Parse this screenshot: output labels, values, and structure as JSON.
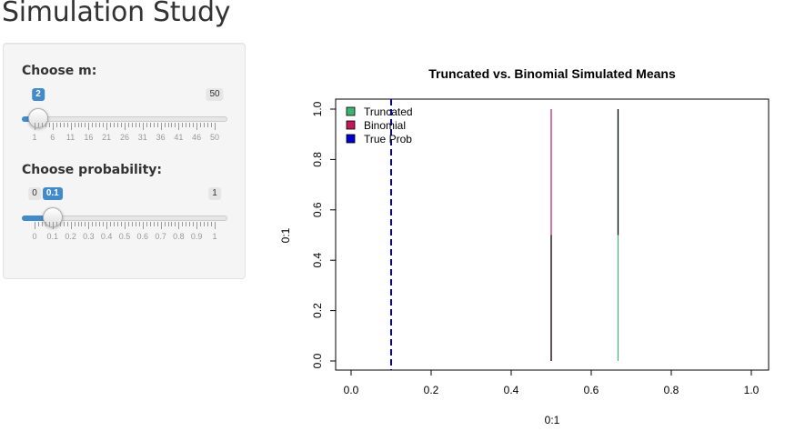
{
  "page": {
    "title": "Simulation Study"
  },
  "controls": {
    "m": {
      "label": "Choose m:",
      "min": 1,
      "max": 50,
      "value": 2,
      "min_label": "",
      "max_label": "50",
      "value_label": "2",
      "ticks": [
        "1",
        "6",
        "11",
        "16",
        "21",
        "26",
        "31",
        "36",
        "41",
        "46",
        "50"
      ]
    },
    "probability": {
      "label": "Choose probability:",
      "min": 0,
      "max": 1,
      "value": 0.1,
      "min_label": "0",
      "max_label": "1",
      "value_label": "0.1",
      "ticks": [
        "0",
        "0.1",
        "0.2",
        "0.3",
        "0.4",
        "0.5",
        "0.6",
        "0.7",
        "0.8",
        "0.9",
        "1"
      ]
    },
    "accent_color": "#428bca"
  },
  "chart_data": {
    "type": "histogram",
    "title": "Truncated vs. Binomial Simulated Means",
    "xlabel": "0:1",
    "ylabel": "0:1",
    "xlim": [
      0,
      1
    ],
    "ylim": [
      0,
      1
    ],
    "xticks": [
      "0.0",
      "0.2",
      "0.4",
      "0.6",
      "0.8",
      "1.0"
    ],
    "yticks": [
      "0.0",
      "0.2",
      "0.4",
      "0.6",
      "0.8",
      "1.0"
    ],
    "legend_position": "top-left",
    "series": [
      {
        "name": "Truncated",
        "color": "#3cb371",
        "x": 0.667,
        "ymin": 0,
        "ymax": 1
      },
      {
        "name": "Binomial",
        "color": "#c2185b",
        "x": 0.5,
        "ymin": 0,
        "ymax": 1
      }
    ],
    "overlay_segments": [
      {
        "color": "#000000",
        "x": 0.5,
        "ymin": 0,
        "ymax": 0.5
      },
      {
        "color": "#000000",
        "x": 0.667,
        "ymin": 0.5,
        "ymax": 1
      }
    ],
    "reference_line": {
      "name": "True Prob",
      "color": "#0000cc",
      "x": 0.1,
      "style": "dashed"
    }
  }
}
